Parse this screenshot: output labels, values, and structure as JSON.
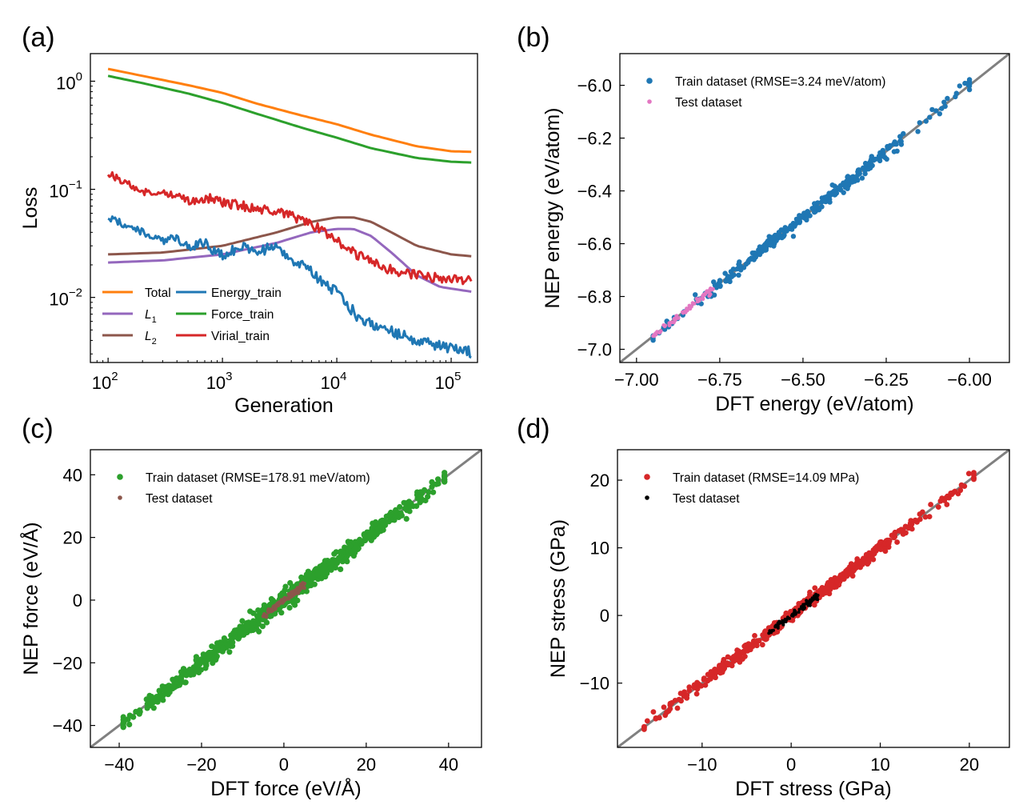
{
  "figure": {
    "panels": [
      {
        "id": "a",
        "label": "(a)"
      },
      {
        "id": "b",
        "label": "(b)"
      },
      {
        "id": "c",
        "label": "(c)"
      },
      {
        "id": "d",
        "label": "(d)"
      }
    ]
  },
  "chart_data": [
    {
      "panel": "(a)",
      "type": "line",
      "xlabel": "Generation",
      "ylabel": "Loss",
      "xscale": "log",
      "yscale": "log",
      "xlim": [
        70,
        170000
      ],
      "ylim": [
        0.0025,
        1.8
      ],
      "xticks": [
        100,
        1000,
        10000,
        100000
      ],
      "xtick_labels": [
        [
          "10",
          "2"
        ],
        [
          "10",
          "3"
        ],
        [
          "10",
          "4"
        ],
        [
          "10",
          "5"
        ]
      ],
      "yticks": [
        0.01,
        0.1,
        1
      ],
      "ytick_labels": [
        [
          "10",
          "−2"
        ],
        [
          "10",
          "−1"
        ],
        [
          "10",
          "0"
        ]
      ],
      "grid": false,
      "legend_position": "bottom-left",
      "series": [
        {
          "name": "Total",
          "sub": "",
          "color": "#ff7f0e",
          "noise": 0,
          "points": [
            [
              100,
              1.3
            ],
            [
              200,
              1.12
            ],
            [
              500,
              0.92
            ],
            [
              1000,
              0.78
            ],
            [
              2000,
              0.62
            ],
            [
              5000,
              0.48
            ],
            [
              10000,
              0.4
            ],
            [
              20000,
              0.32
            ],
            [
              50000,
              0.25
            ],
            [
              100000,
              0.225
            ],
            [
              150000,
              0.222
            ]
          ]
        },
        {
          "name": "Force_train",
          "sub": "",
          "color": "#2ca02c",
          "noise": 0,
          "points": [
            [
              100,
              1.12
            ],
            [
              200,
              0.96
            ],
            [
              500,
              0.77
            ],
            [
              1000,
              0.63
            ],
            [
              2000,
              0.5
            ],
            [
              5000,
              0.37
            ],
            [
              10000,
              0.3
            ],
            [
              20000,
              0.24
            ],
            [
              50000,
              0.195
            ],
            [
              100000,
              0.18
            ],
            [
              150000,
              0.177
            ]
          ]
        },
        {
          "name": "L",
          "sub": "1",
          "color": "#9467bd",
          "noise": 0,
          "points": [
            [
              100,
              0.021
            ],
            [
              300,
              0.022
            ],
            [
              1000,
              0.025
            ],
            [
              3000,
              0.032
            ],
            [
              6000,
              0.04
            ],
            [
              10000,
              0.043
            ],
            [
              14000,
              0.043
            ],
            [
              20000,
              0.037
            ],
            [
              30000,
              0.026
            ],
            [
              50000,
              0.016
            ],
            [
              80000,
              0.0125
            ],
            [
              150000,
              0.0113
            ]
          ]
        },
        {
          "name": "L",
          "sub": "2",
          "color": "#8c564b",
          "noise": 0,
          "points": [
            [
              100,
              0.025
            ],
            [
              300,
              0.026
            ],
            [
              1000,
              0.03
            ],
            [
              3000,
              0.04
            ],
            [
              6000,
              0.05
            ],
            [
              10000,
              0.055
            ],
            [
              14000,
              0.055
            ],
            [
              20000,
              0.05
            ],
            [
              30000,
              0.04
            ],
            [
              50000,
              0.03
            ],
            [
              100000,
              0.025
            ],
            [
              150000,
              0.024
            ]
          ]
        },
        {
          "name": "Energy_train",
          "sub": "",
          "color": "#1f77b4",
          "noise": 0.05,
          "points": [
            [
              100,
              0.055
            ],
            [
              200,
              0.04
            ],
            [
              300,
              0.033
            ],
            [
              400,
              0.036
            ],
            [
              500,
              0.03
            ],
            [
              700,
              0.032
            ],
            [
              900,
              0.026
            ],
            [
              1000,
              0.024
            ],
            [
              1500,
              0.03
            ],
            [
              2000,
              0.027
            ],
            [
              3000,
              0.029
            ],
            [
              4000,
              0.023
            ],
            [
              6000,
              0.017
            ],
            [
              10000,
              0.011
            ],
            [
              15000,
              0.0068
            ],
            [
              20000,
              0.0058
            ],
            [
              30000,
              0.0048
            ],
            [
              50000,
              0.004
            ],
            [
              80000,
              0.0035
            ],
            [
              150000,
              0.0031
            ]
          ]
        },
        {
          "name": "Virial_train",
          "sub": "",
          "color": "#d62728",
          "noise": 0.045,
          "points": [
            [
              100,
              0.14
            ],
            [
              200,
              0.095
            ],
            [
              300,
              0.094
            ],
            [
              500,
              0.08
            ],
            [
              800,
              0.082
            ],
            [
              1000,
              0.075
            ],
            [
              1500,
              0.07
            ],
            [
              2000,
              0.066
            ],
            [
              3000,
              0.062
            ],
            [
              5000,
              0.052
            ],
            [
              8000,
              0.04
            ],
            [
              10000,
              0.033
            ],
            [
              15000,
              0.025
            ],
            [
              20000,
              0.021
            ],
            [
              30000,
              0.018
            ],
            [
              50000,
              0.016
            ],
            [
              100000,
              0.0145
            ],
            [
              150000,
              0.0142
            ]
          ]
        }
      ]
    },
    {
      "panel": "(b)",
      "type": "scatter",
      "xlabel": "DFT energy (eV/atom)",
      "ylabel": "NEP energy (eV/atom)",
      "xlim": [
        -7.05,
        -5.88
      ],
      "ylim": [
        -7.05,
        -5.88
      ],
      "xticks": [
        -7.0,
        -6.75,
        -6.5,
        -6.25,
        -6.0
      ],
      "xtick_labels": [
        "−7.00",
        "−6.75",
        "−6.50",
        "−6.25",
        "−6.00"
      ],
      "yticks": [
        -7.0,
        -6.8,
        -6.6,
        -6.4,
        -6.2,
        -6.0
      ],
      "ytick_labels": [
        "−7.0",
        "−6.8",
        "−6.6",
        "−6.4",
        "−6.2",
        "−6.0"
      ],
      "grid": false,
      "legend_position": "top-left",
      "diagonal": true,
      "series": [
        {
          "name": "Train dataset (RMSE=3.24 meV/atom)",
          "color": "#1f77b4",
          "range": [
            -6.95,
            -6.0
          ],
          "scatter": 0.012,
          "count": 320,
          "radius": 3.2
        },
        {
          "name": "Test dataset",
          "color": "#e377c2",
          "range": [
            -6.95,
            -6.77
          ],
          "scatter": 0.006,
          "count": 60,
          "radius": 2.4
        }
      ]
    },
    {
      "panel": "(c)",
      "type": "scatter",
      "xlabel": "DFT force (eV/Å)",
      "ylabel": "NEP force (eV/Å)",
      "xlim": [
        -47,
        48
      ],
      "ylim": [
        -47,
        48
      ],
      "xticks": [
        -40,
        -20,
        0,
        20,
        40
      ],
      "xtick_labels": [
        "−40",
        "−20",
        "0",
        "20",
        "40"
      ],
      "yticks": [
        -40,
        -20,
        0,
        20,
        40
      ],
      "ytick_labels": [
        "−40",
        "−20",
        "0",
        "20",
        "40"
      ],
      "grid": false,
      "legend_position": "top-left",
      "diagonal": true,
      "series": [
        {
          "name": "Train dataset (RMSE=178.91 meV/atom)",
          "color": "#2ca02c",
          "range": [
            -39,
            39
          ],
          "scatter": 1.4,
          "count": 700,
          "radius": 3.6
        },
        {
          "name": "Test dataset",
          "color": "#8c564b",
          "range": [
            -5,
            5
          ],
          "scatter": 0.5,
          "count": 80,
          "radius": 2.4
        }
      ]
    },
    {
      "panel": "(d)",
      "type": "scatter",
      "xlabel": "DFT stress (GPa)",
      "ylabel": "NEP stress (GPa)",
      "xlim": [
        -19.5,
        24.5
      ],
      "ylim": [
        -19.5,
        24.5
      ],
      "xticks": [
        -10,
        0,
        10,
        20
      ],
      "xtick_labels": [
        "−10",
        "0",
        "10",
        "20"
      ],
      "yticks": [
        -10,
        0,
        10,
        20
      ],
      "ytick_labels": [
        "−10",
        "0",
        "10",
        "20"
      ],
      "grid": false,
      "legend_position": "top-left",
      "diagonal": true,
      "series": [
        {
          "name": "Train dataset (RMSE=14.09 MPa)",
          "color": "#d62728",
          "range": [
            -16.5,
            20.5
          ],
          "scatter": 0.45,
          "count": 500,
          "radius": 3.4
        },
        {
          "name": "Test dataset",
          "color": "#000000",
          "range": [
            -2.5,
            3
          ],
          "scatter": 0.25,
          "count": 90,
          "radius": 2.0
        }
      ]
    }
  ]
}
